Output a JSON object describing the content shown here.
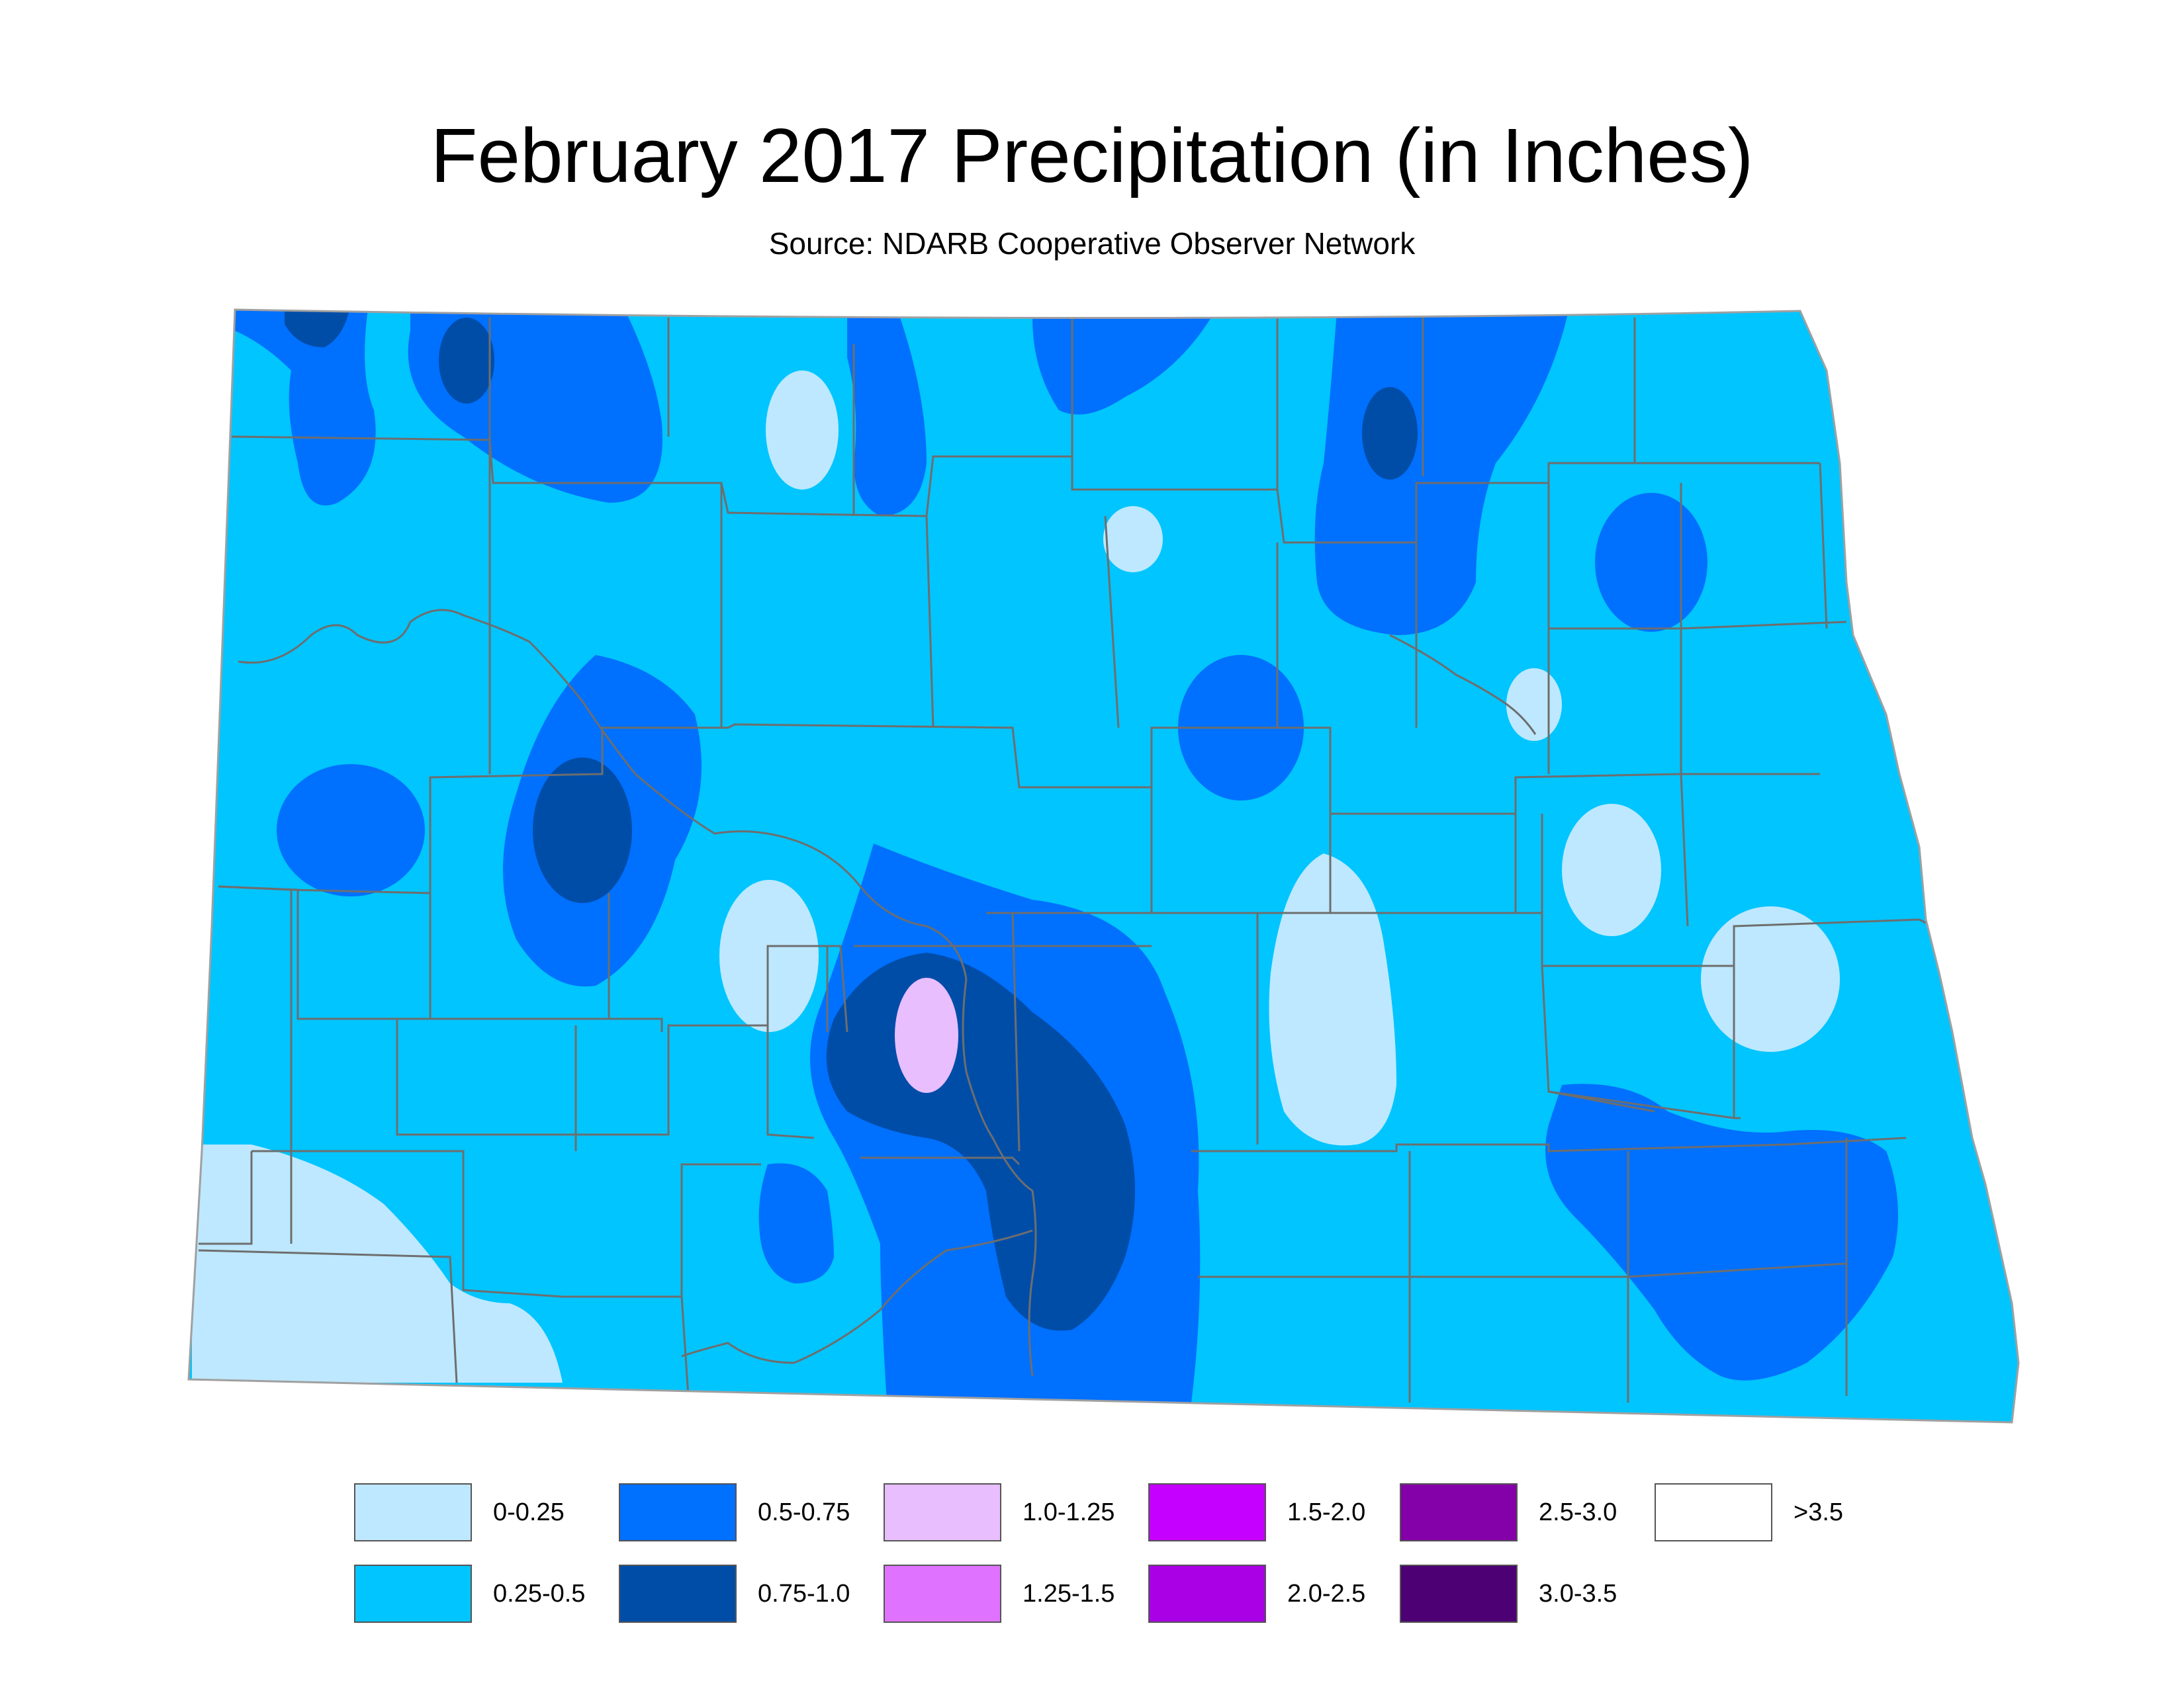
{
  "title": "February 2017 Precipitation (in Inches)",
  "subtitle": "Source: NDARB Cooperative Observer Network",
  "map": {
    "region": "North Dakota",
    "unit": "Inches",
    "colors": {
      "county_boundary": "#6e6e6e",
      "river": "#6e6e6e",
      "state_outline_fill": "#00c5ff"
    }
  },
  "legend": {
    "items": [
      {
        "label": "0-0.25",
        "color": "#bee8ff"
      },
      {
        "label": "0.25-0.5",
        "color": "#00c5ff"
      },
      {
        "label": "0.5-0.75",
        "color": "#0070ff"
      },
      {
        "label": "0.75-1.0",
        "color": "#004da8"
      },
      {
        "label": "1.0-1.25",
        "color": "#e8beff"
      },
      {
        "label": "1.25-1.5",
        "color": "#df73ff"
      },
      {
        "label": "1.5-2.0",
        "color": "#c500ff"
      },
      {
        "label": "2.0-2.5",
        "color": "#a900e6"
      },
      {
        "label": "2.5-3.0",
        "color": "#8400a8"
      },
      {
        "label": "3.0-3.5",
        "color": "#4c0073"
      },
      {
        "label": ">3.5",
        "color": "#ffffff"
      }
    ]
  }
}
